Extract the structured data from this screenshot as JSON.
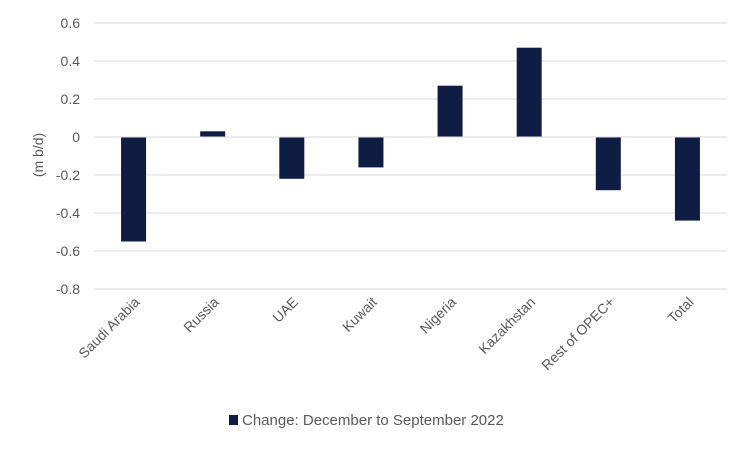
{
  "chart_data": {
    "type": "bar",
    "categories": [
      "Saudi Arabia",
      "Russia",
      "UAE",
      "Kuwait",
      "Nigeria",
      "Kazakhstan",
      "Rest of OPEC+",
      "Total"
    ],
    "series": [
      {
        "name": "Change: December to September 2022",
        "values": [
          -0.55,
          0.03,
          -0.22,
          -0.16,
          0.27,
          0.47,
          -0.28,
          -0.44
        ],
        "color": "#0f1d45"
      }
    ],
    "ylabel": "(m b/d)",
    "ylim": [
      -0.8,
      0.6
    ],
    "yticks": [
      "0.6",
      "0.4",
      "0.2",
      "0",
      "-0.2",
      "-0.4",
      "-0.6",
      "-0.8"
    ],
    "grid": true,
    "legend_position": "bottom"
  }
}
